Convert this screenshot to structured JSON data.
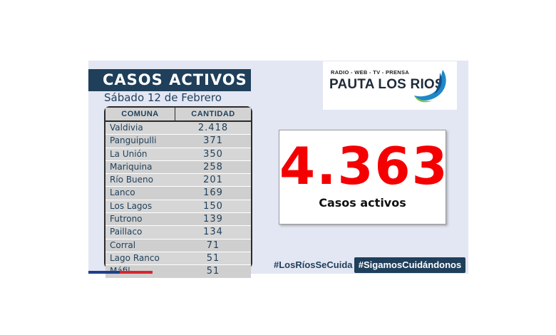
{
  "header": {
    "title": "CASOS ACTIVOS",
    "date": "Sábado 12 de Febrero"
  },
  "table": {
    "columns": [
      "COMUNA",
      "CANTIDAD"
    ],
    "rows": [
      {
        "comuna": "Valdivia",
        "cantidad": "2.418"
      },
      {
        "comuna": "Panguipulli",
        "cantidad": "371"
      },
      {
        "comuna": "La Unión",
        "cantidad": "350"
      },
      {
        "comuna": "Mariquina",
        "cantidad": "258"
      },
      {
        "comuna": "Río Bueno",
        "cantidad": "201"
      },
      {
        "comuna": "Lanco",
        "cantidad": "169"
      },
      {
        "comuna": "Los Lagos",
        "cantidad": "150"
      },
      {
        "comuna": "Futrono",
        "cantidad": "139"
      },
      {
        "comuna": "Paillaco",
        "cantidad": "134"
      },
      {
        "comuna": "Corral",
        "cantidad": "71"
      },
      {
        "comuna": "Lago Ranco",
        "cantidad": "51"
      },
      {
        "comuna": "Máfil",
        "cantidad": "51"
      }
    ]
  },
  "logo": {
    "tagline": "RADIO - WEB - TV - PRENSA",
    "name": "PAUTA LOS RIOS"
  },
  "total": {
    "value": "4.363",
    "label": "Casos activos"
  },
  "hashtags": {
    "first": "#LosRíosSeCuida",
    "second": "#SigamosCuidándonos"
  },
  "colors": {
    "navy": "#1f3f5a",
    "red": "#f40000",
    "panel": "#e3e6f3"
  }
}
